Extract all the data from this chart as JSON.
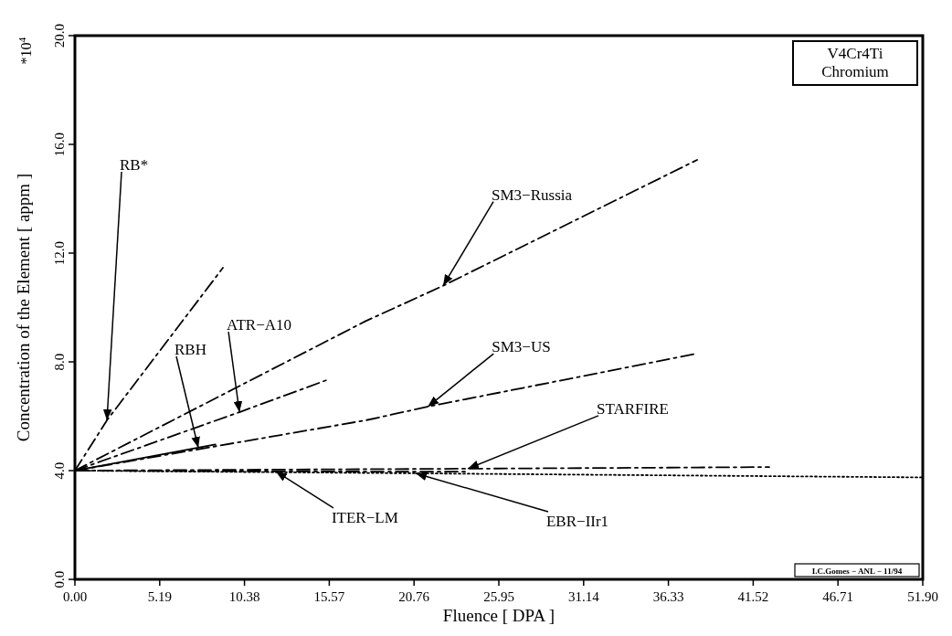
{
  "chart_data": {
    "type": "line",
    "title": "V4Cr4Ti",
    "subtitle": "Chromium",
    "xlabel": "Fluence [ DPA ]",
    "ylabel": "Concentration of the Element [ appm ]",
    "xlim": [
      0,
      51.9
    ],
    "ylim": [
      0,
      20
    ],
    "xticks": [
      {
        "value": 0,
        "label": "0.00"
      },
      {
        "value": 5.19,
        "label": "5.19"
      },
      {
        "value": 10.38,
        "label": "10.38"
      },
      {
        "value": 15.57,
        "label": "15.57"
      },
      {
        "value": 20.76,
        "label": "20.76"
      },
      {
        "value": 25.95,
        "label": "25.95"
      },
      {
        "value": 31.14,
        "label": "31.14"
      },
      {
        "value": 36.33,
        "label": "36.33"
      },
      {
        "value": 41.52,
        "label": "41.52"
      },
      {
        "value": 46.71,
        "label": "46.71"
      },
      {
        "value": 51.9,
        "label": "51.90"
      }
    ],
    "yticks": [
      {
        "value": 0,
        "label": "0.0"
      },
      {
        "value": 4,
        "label": "4.0"
      },
      {
        "value": 8,
        "label": "8.0"
      },
      {
        "value": 12,
        "label": "12.0"
      },
      {
        "value": 16,
        "label": "16.0"
      },
      {
        "value": 20,
        "label": "20.0"
      }
    ],
    "grid": false,
    "marker": "none",
    "series": [
      {
        "color": "#000000",
        "line_style": "dashed",
        "x": [
          0,
          1.96,
          9.06
        ],
        "values": [
          4,
          5.85,
          11.46
        ]
      },
      {
        "color": "#000000",
        "line_style": "solid",
        "x": [
          0,
          8.6
        ],
        "values": [
          4,
          4.96
        ]
      },
      {
        "color": "#000000",
        "line_style": "dashed",
        "x": [
          0,
          10.07,
          15.55
        ],
        "values": [
          4,
          6.15,
          7.36
        ]
      },
      {
        "color": "#000000",
        "line_style": "dashed",
        "x": [
          0,
          17.8,
          22.54,
          38.09
        ],
        "values": [
          4,
          9.5,
          10.8,
          15.43
        ]
      },
      {
        "color": "#000000",
        "line_style": "dashed",
        "x": [
          0,
          17.8,
          21.6,
          38.03
        ],
        "values": [
          4,
          5.85,
          6.35,
          8.3
        ]
      },
      {
        "color": "#000000",
        "line_style": "dashed",
        "x": [
          0,
          24.05,
          42.5
        ],
        "values": [
          4,
          4.07,
          4.13
        ]
      },
      {
        "color": "#000000",
        "line_style": "dashed",
        "x": [
          0,
          12.3,
          24
        ],
        "values": [
          4,
          3.97,
          3.96
        ]
      },
      {
        "color": "#000000",
        "line_style": "dotted",
        "x": [
          0,
          20.86,
          51.9
        ],
        "values": [
          4,
          3.9,
          3.75
        ]
      }
    ],
    "annotations": [
      {
        "text": "RB*",
        "x": 1.96,
        "y": 5.85
      },
      {
        "text": "RBH",
        "x": 7.55,
        "y": 4.84
      },
      {
        "text": "ATR−A10",
        "x": 10.07,
        "y": 6.15
      },
      {
        "text": "SM3−Russia",
        "x": 22.54,
        "y": 10.8
      },
      {
        "text": "SM3−US",
        "x": 21.6,
        "y": 6.35
      },
      {
        "text": "STARFIRE",
        "x": 24.05,
        "y": 4.07
      },
      {
        "text": "ITER−LM",
        "x": 12.3,
        "y": 3.97
      },
      {
        "text": "EBR−IIr1",
        "x": 20.86,
        "y": 3.9
      },
      "*10$^{4}$",
      "I.C.Gomes − ANL − 11/94"
    ]
  }
}
